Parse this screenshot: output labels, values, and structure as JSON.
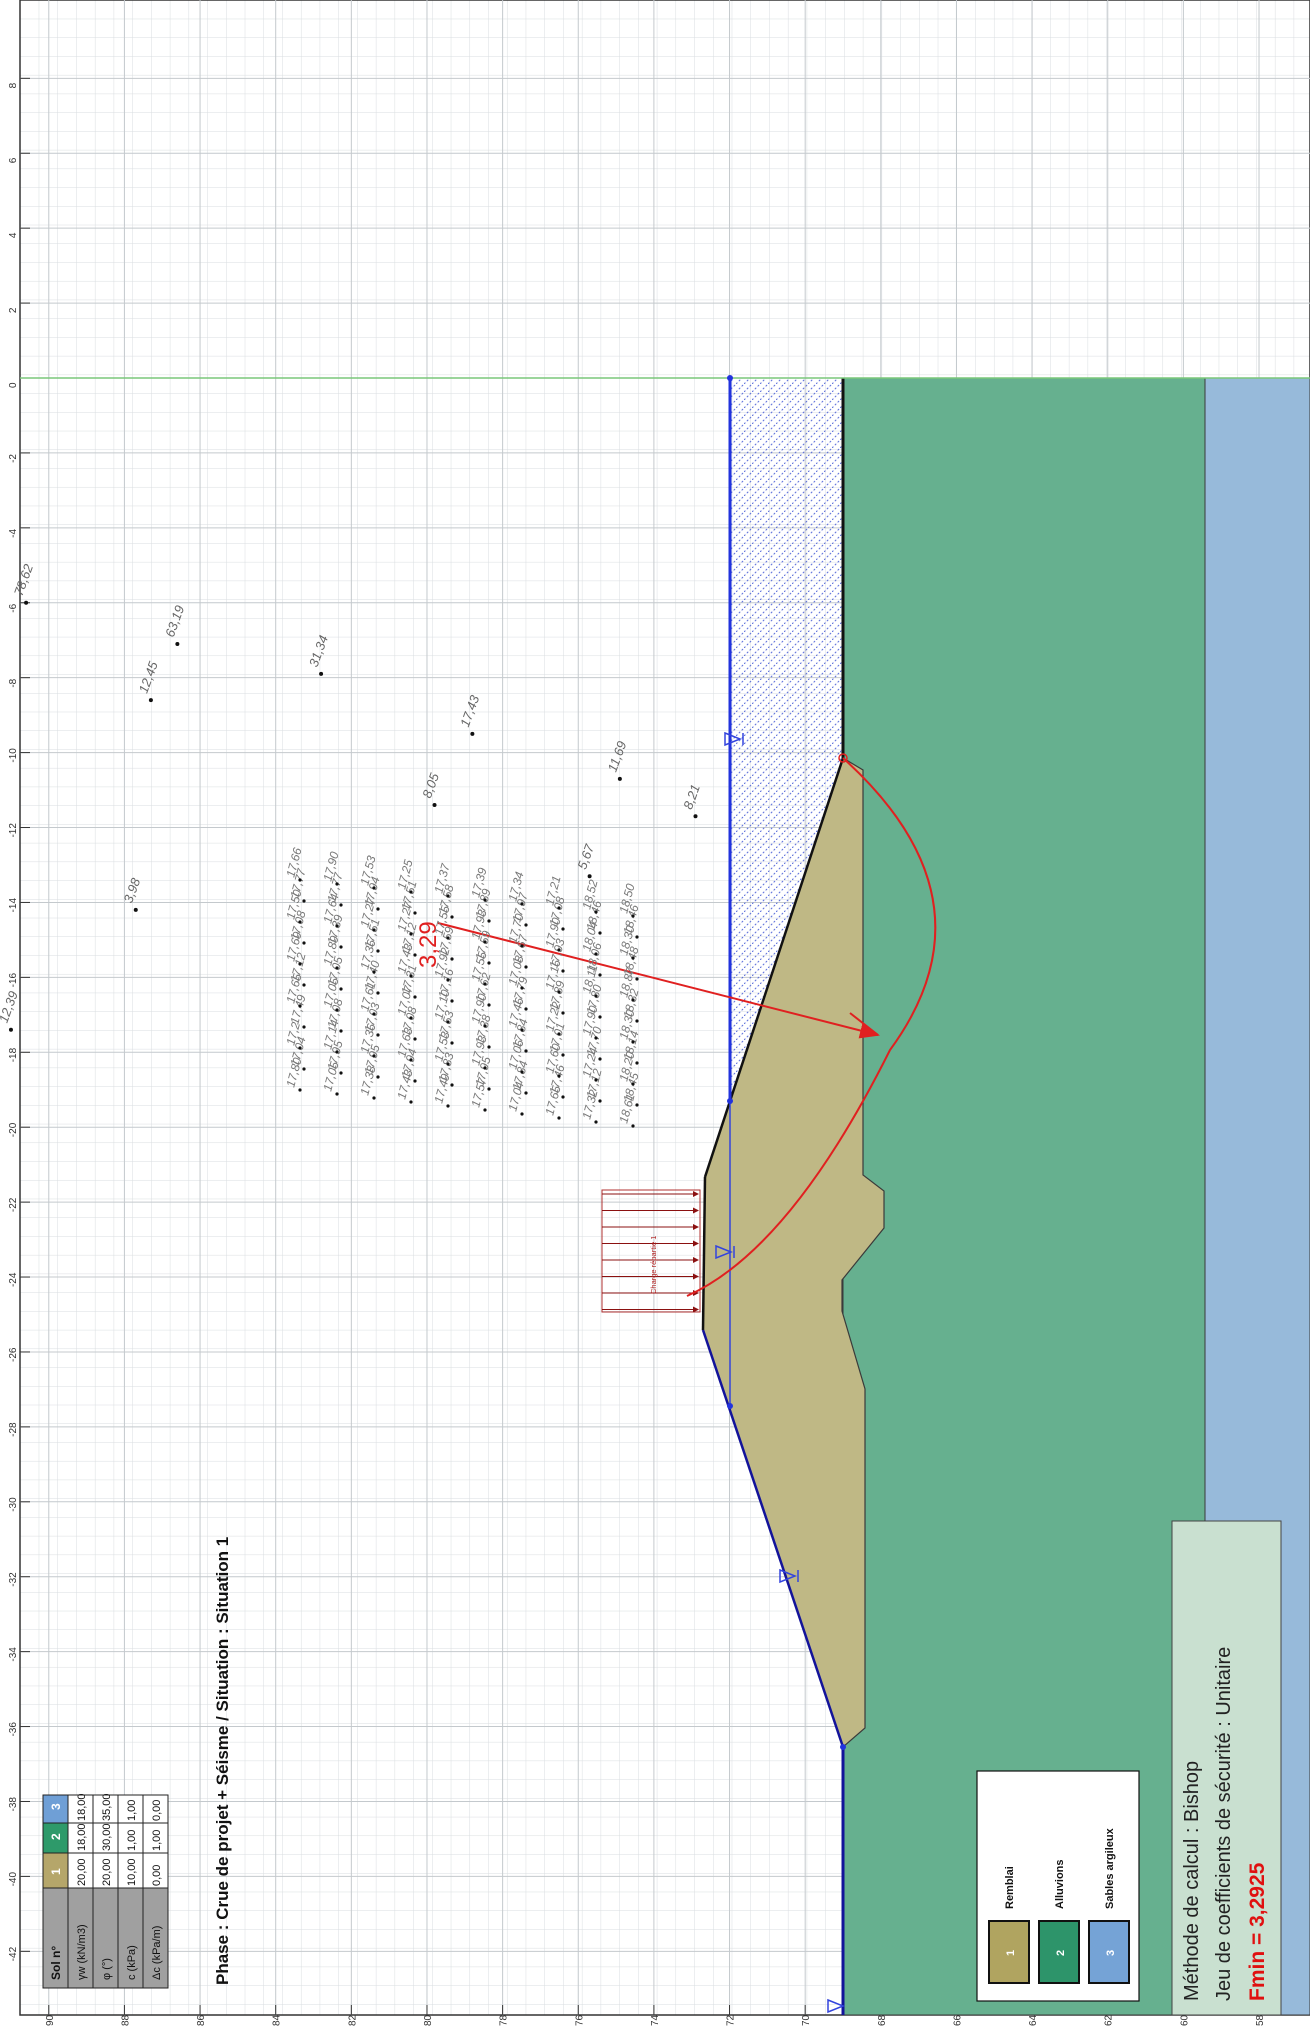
{
  "phase_title": "Phase : Crue de projet + Séisme / Situation : Situation 1",
  "soil_table": {
    "header_label": "Sol n°",
    "soil_ids": [
      "1",
      "2",
      "3"
    ],
    "soil_colors": [
      "#b5a66a",
      "#2e9a6a",
      "#6f9fd6"
    ],
    "rows": [
      {
        "label": "γw (kN/m3)",
        "values": [
          "20,00",
          "18,00",
          "18,00"
        ]
      },
      {
        "label": "φ (°)",
        "values": [
          "20,00",
          "30,00",
          "35,00"
        ]
      },
      {
        "label": "c (kPa)",
        "values": [
          "10,00",
          "1,00",
          "1,00"
        ]
      },
      {
        "label": "Δc (kPa/m)",
        "values": [
          "0,00",
          "1,00",
          "0,00"
        ]
      }
    ]
  },
  "legend": [
    {
      "id": "1",
      "name": "Remblai",
      "color": "#b0a460"
    },
    {
      "id": "2",
      "name": "Alluvions",
      "color": "#2d946a"
    },
    {
      "id": "3",
      "name": "Sables argileux",
      "color": "#75a3d6"
    }
  ],
  "result_box": {
    "method": "Méthode de calcul : Bishop",
    "safety_set": "Jeu de coefficients de sécurité : Unitaire",
    "fmin": "Fmin = 3,2925"
  },
  "load_label": "Charge répartie 1",
  "critical_factor": "3,29",
  "axis_ticks": {
    "horizontal": [
      "-42",
      "-40",
      "-38",
      "-36",
      "-34",
      "-32",
      "-30",
      "-28",
      "-26",
      "-24",
      "-22",
      "-20",
      "-18",
      "-16",
      "-14",
      "-12",
      "-10",
      "-8",
      "-6",
      "-4",
      "-2",
      "0",
      "2",
      "4",
      "6",
      "8"
    ],
    "vertical": [
      "90",
      "88",
      "86",
      "84",
      "82",
      "80",
      "78",
      "76",
      "74",
      "72",
      "70",
      "68",
      "66",
      "64",
      "62",
      "60",
      "58"
    ]
  },
  "center_factors": [
    {
      "value": "78,62",
      "x": -6.0,
      "y": 90.6
    },
    {
      "value": "63,19",
      "x": -7.1,
      "y": 86.6
    },
    {
      "value": "12,45",
      "x": -8.6,
      "y": 87.3
    },
    {
      "value": "31,34",
      "x": -7.9,
      "y": 82.8
    },
    {
      "value": "17,43",
      "x": -9.5,
      "y": 78.8
    },
    {
      "value": "11,69",
      "x": -10.7,
      "y": 74.9
    },
    {
      "value": "8,05",
      "x": -11.4,
      "y": 79.8
    },
    {
      "value": "8,21",
      "x": -11.7,
      "y": 72.9
    },
    {
      "value": "5,67",
      "x": -13.3,
      "y": 75.7
    },
    {
      "value": "3,98",
      "x": -14.2,
      "y": 87.7
    },
    {
      "value": "12,39",
      "x": -17.4,
      "y": 91.0
    }
  ],
  "dense_factors": [
    "17,80",
    "17,04",
    "17,2",
    "17,49",
    "17,65",
    "17,12",
    "17,69",
    "17,08",
    "17,50",
    "17,77",
    "17,66",
    "17,05",
    "17,95",
    "17,14",
    "17,08",
    "17,05",
    "17,05",
    "17,89",
    "17,39",
    "17,64",
    "17,77",
    "17,90",
    "17,38",
    "17,95",
    "17,36",
    "17,03",
    "17,61",
    "17,40",
    "17,36",
    "17,51",
    "17,27",
    "17,94",
    "17,53",
    "17,43",
    "17,94",
    "17,63",
    "17,08",
    "17,07",
    "17,31",
    "17,43",
    "17,12",
    "17,27",
    "17,51",
    "17,25",
    "17,49",
    "17,83",
    "17,53",
    "17,53",
    "17,10",
    "17,16",
    "17,92",
    "17,59",
    "17,55",
    "17,58",
    "17,37",
    "17,57",
    "17,95",
    "17,93",
    "17,38",
    "17,90",
    "17,62",
    "17,55",
    "17,59",
    "17,93",
    "17,89",
    "17,39",
    "17,04",
    "17,84",
    "17,06",
    "17,84",
    "17,46",
    "17,79",
    "17,08",
    "17,67",
    "17,70",
    "17,97",
    "17,34",
    "17,65",
    "17,46",
    "17,60",
    "17,01",
    "17,22",
    "17,89",
    "17,16",
    "17,93",
    "17,90",
    "17,08",
    "17,21",
    "17,32",
    "17,12",
    "17,24",
    "17,70",
    "17,90",
    "17,80",
    "18,11",
    "18,06",
    "18,04",
    "18,46",
    "18,52",
    "18,61",
    "18,45",
    "18,20",
    "18,14",
    "18,30",
    "18,32",
    "18,87",
    "18,48",
    "18,30",
    "18,46",
    "18,50"
  ]
}
